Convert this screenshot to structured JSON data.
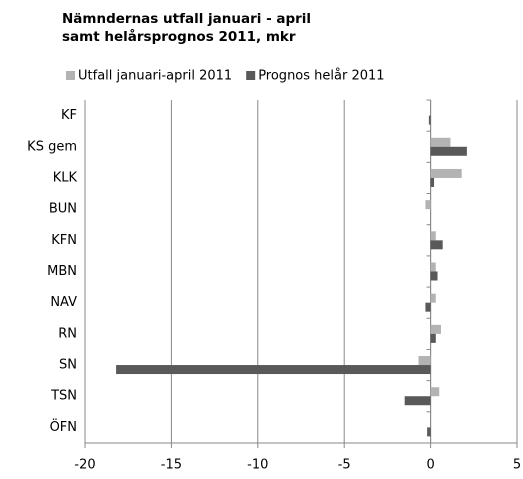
{
  "chart_data": {
    "type": "barh",
    "title": "Nämndernas utfall januari - april samt helårsprognos 2011, mkr",
    "categories": [
      "KF",
      "KS gem",
      "KLK",
      "BUN",
      "KFN",
      "MBN",
      "NAV",
      "RN",
      "SN",
      "TSN",
      "ÖFN"
    ],
    "series": [
      {
        "name": "Utfall  januari-april 2011",
        "color": "#b3b3b3",
        "values": [
          0,
          1.15,
          1.8,
          -0.3,
          0.3,
          0.3,
          0.3,
          0.6,
          -0.7,
          0.5,
          0
        ]
      },
      {
        "name": "Prognos helår 2011",
        "color": "#595959",
        "values": [
          -0.1,
          2.1,
          0.2,
          0,
          0.7,
          0.4,
          -0.3,
          0.3,
          -18.2,
          -1.5,
          -0.2
        ]
      }
    ],
    "xlim": [
      -20,
      5
    ],
    "xticks": [
      -20,
      -15,
      -10,
      -5,
      0,
      5
    ],
    "grid": true,
    "legend": "top"
  }
}
